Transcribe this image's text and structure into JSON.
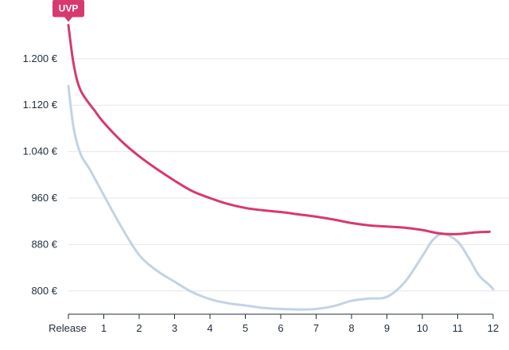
{
  "chart_data": {
    "type": "line",
    "x_tick_labels": [
      "Release",
      "1",
      "2",
      "3",
      "4",
      "5",
      "6",
      "7",
      "8",
      "9",
      "10",
      "11",
      "12"
    ],
    "y_tick_labels": [
      "1.200 €",
      "1.120 €",
      "1.040 €",
      "960 €",
      "880 €",
      "800 €"
    ],
    "y_ticks": [
      1200,
      1120,
      1040,
      960,
      880,
      800
    ],
    "xlim": [
      0,
      12
    ],
    "ylim": [
      760,
      1282
    ],
    "grid": true,
    "annotation": {
      "label": "UVP",
      "x": 0,
      "y": 1258
    },
    "series": [
      {
        "color": "#d63a6e",
        "points": [
          [
            0,
            1258
          ],
          [
            0.15,
            1190
          ],
          [
            0.35,
            1145
          ],
          [
            0.75,
            1110
          ],
          [
            1.0,
            1090
          ],
          [
            1.5,
            1058
          ],
          [
            2.0,
            1032
          ],
          [
            2.5,
            1010
          ],
          [
            3.0,
            990
          ],
          [
            3.5,
            972
          ],
          [
            4.0,
            960
          ],
          [
            4.5,
            950
          ],
          [
            5.0,
            943
          ],
          [
            5.5,
            939
          ],
          [
            6.0,
            936
          ],
          [
            6.5,
            932
          ],
          [
            7.0,
            928
          ],
          [
            7.5,
            923
          ],
          [
            8.0,
            917
          ],
          [
            8.5,
            913
          ],
          [
            9.0,
            911
          ],
          [
            9.5,
            909
          ],
          [
            10.0,
            905
          ],
          [
            10.5,
            899
          ],
          [
            11.0,
            898
          ],
          [
            11.5,
            901
          ],
          [
            11.9,
            902
          ]
        ]
      },
      {
        "color": "#c3d3e4",
        "points": [
          [
            0,
            1153
          ],
          [
            0.15,
            1080
          ],
          [
            0.35,
            1035
          ],
          [
            0.6,
            1010
          ],
          [
            1.0,
            965
          ],
          [
            1.5,
            910
          ],
          [
            2.0,
            862
          ],
          [
            2.5,
            835
          ],
          [
            3.0,
            816
          ],
          [
            3.5,
            798
          ],
          [
            4.0,
            786
          ],
          [
            4.5,
            779
          ],
          [
            5.0,
            775
          ],
          [
            5.5,
            771
          ],
          [
            6.0,
            769
          ],
          [
            6.5,
            768
          ],
          [
            7.0,
            769
          ],
          [
            7.5,
            774
          ],
          [
            8.0,
            783
          ],
          [
            8.5,
            787
          ],
          [
            9.0,
            790
          ],
          [
            9.5,
            815
          ],
          [
            10.0,
            860
          ],
          [
            10.3,
            888
          ],
          [
            10.6,
            898
          ],
          [
            11.0,
            885
          ],
          [
            11.3,
            858
          ],
          [
            11.6,
            827
          ],
          [
            11.9,
            810
          ],
          [
            12.0,
            803
          ]
        ]
      }
    ]
  }
}
